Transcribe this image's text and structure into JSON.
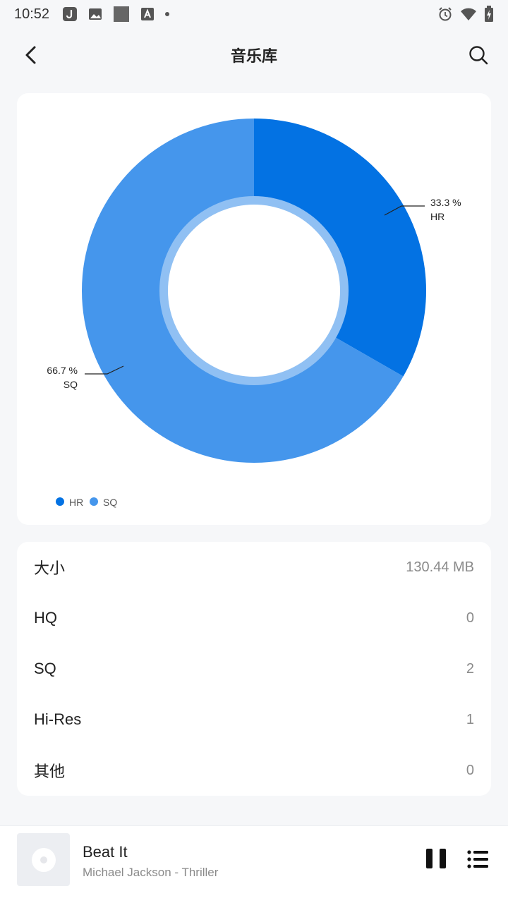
{
  "status_bar": {
    "time": "10:52",
    "left_icons": [
      "app-j-icon",
      "image-icon",
      "square-icon",
      "font-a-icon",
      "dot-icon"
    ],
    "right_icons": [
      "alarm-icon",
      "wifi-icon",
      "battery-charging-icon"
    ]
  },
  "header": {
    "title": "音乐库",
    "back_icon": "back-chevron-icon",
    "search_icon": "search-icon"
  },
  "chart_data": {
    "type": "pie",
    "donut": true,
    "categories": [
      "HR",
      "SQ"
    ],
    "values": [
      33.3,
      66.7
    ],
    "labels": [
      {
        "percent": "33.3 %",
        "name": "HR"
      },
      {
        "percent": "66.7 %",
        "name": "SQ"
      }
    ],
    "colors": [
      "#0372e3",
      "#4596ec"
    ],
    "legend": [
      "HR",
      "SQ"
    ],
    "legend_placement": "bottom-left"
  },
  "stats": [
    {
      "label": "大小",
      "value": "130.44 MB"
    },
    {
      "label": "HQ",
      "value": "0"
    },
    {
      "label": "SQ",
      "value": "2"
    },
    {
      "label": "Hi-Res",
      "value": "1"
    },
    {
      "label": "其他",
      "value": "0"
    }
  ],
  "player": {
    "title": "Beat It",
    "subtitle": "Michael Jackson - Thriller",
    "pause_icon": "pause-icon",
    "playlist_icon": "playlist-icon"
  }
}
